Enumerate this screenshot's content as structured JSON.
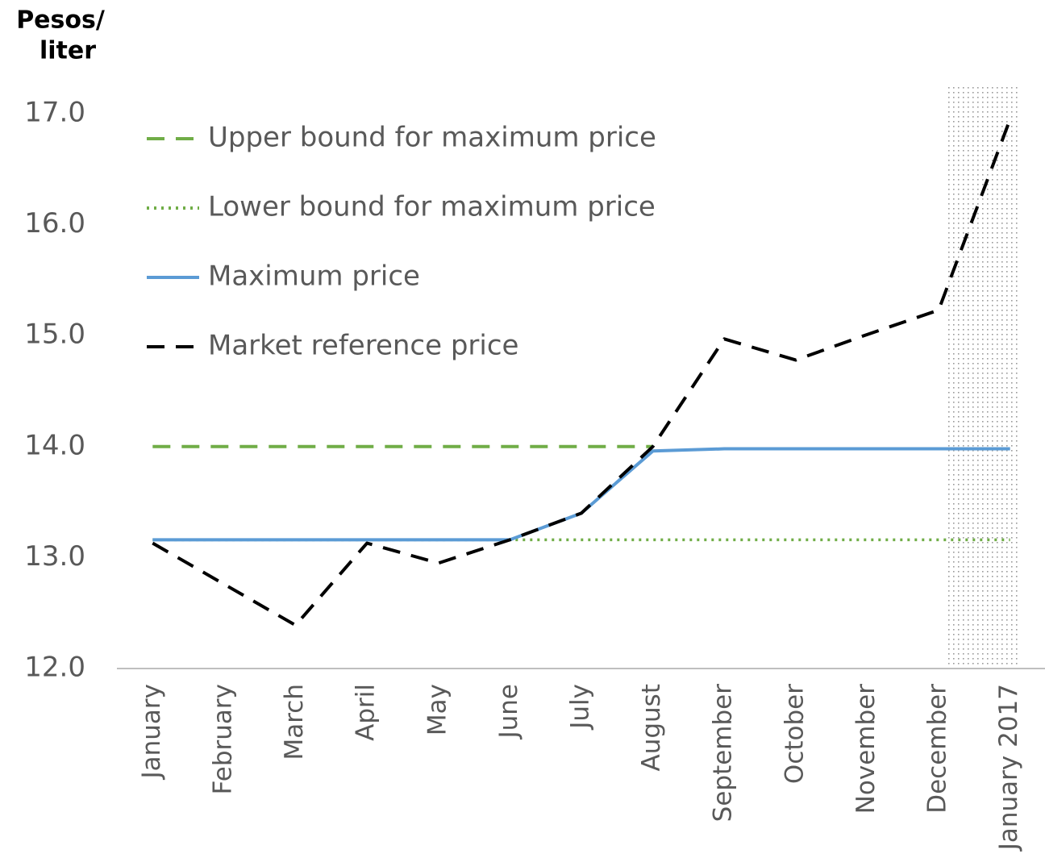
{
  "chart_data": {
    "type": "line",
    "y_axis_label": [
      "Pesos/",
      "liter"
    ],
    "categories": [
      "January",
      "February",
      "March",
      "April",
      "May",
      "June",
      "July",
      "August",
      "September",
      "October",
      "November",
      "December",
      "January 2017"
    ],
    "series": [
      {
        "name": "Upper bound for maximum price",
        "color": "#70ad47",
        "style": "dashed",
        "values": [
          14.0,
          14.0,
          14.0,
          14.0,
          14.0,
          14.0,
          14.0,
          14.0,
          null,
          null,
          null,
          null,
          null
        ]
      },
      {
        "name": "Lower bound for maximum price",
        "color": "#70ad47",
        "style": "dotted",
        "values": [
          13.16,
          13.16,
          13.16,
          13.16,
          13.16,
          13.16,
          13.16,
          13.16,
          13.16,
          13.16,
          13.16,
          13.16,
          13.16
        ]
      },
      {
        "name": "Maximum price",
        "color": "#5b9bd5",
        "style": "solid",
        "values": [
          13.16,
          13.16,
          13.16,
          13.16,
          13.16,
          13.16,
          13.4,
          13.96,
          13.98,
          13.98,
          13.98,
          13.98,
          13.98
        ]
      },
      {
        "name": "Market reference price",
        "color": "#000000",
        "style": "dashed",
        "values": [
          13.13,
          12.76,
          12.39,
          13.13,
          12.95,
          13.16,
          13.4,
          14.0,
          14.97,
          14.78,
          15.01,
          15.23,
          16.95
        ]
      }
    ],
    "ylim": [
      12.0,
      17.0
    ],
    "yticks": [
      {
        "value": 12,
        "label": "12.0"
      },
      {
        "value": 13,
        "label": "13.0"
      },
      {
        "value": 14,
        "label": "14.0"
      },
      {
        "value": 15,
        "label": "15.0"
      },
      {
        "value": 16,
        "label": "16.0"
      },
      {
        "value": 17,
        "label": "17.0"
      }
    ],
    "legend": "top-left",
    "grid": false
  }
}
